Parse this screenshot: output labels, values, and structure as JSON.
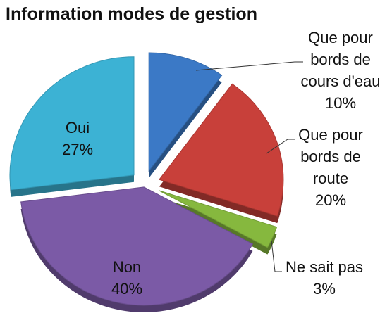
{
  "chart_data": {
    "type": "pie",
    "title": "Information modes de gestion",
    "categories": [
      "Que pour bords de cours d'eau",
      "Que pour bords de route",
      "Ne sait pas",
      "Non",
      "Oui"
    ],
    "values": [
      10,
      20,
      3,
      40,
      27
    ],
    "value_labels": [
      "10%",
      "20%",
      "3%",
      "40%",
      "27%"
    ],
    "colors": [
      "#3b79c6",
      "#c8403a",
      "#86b83e",
      "#7b5aa6",
      "#3cb2d4"
    ]
  }
}
